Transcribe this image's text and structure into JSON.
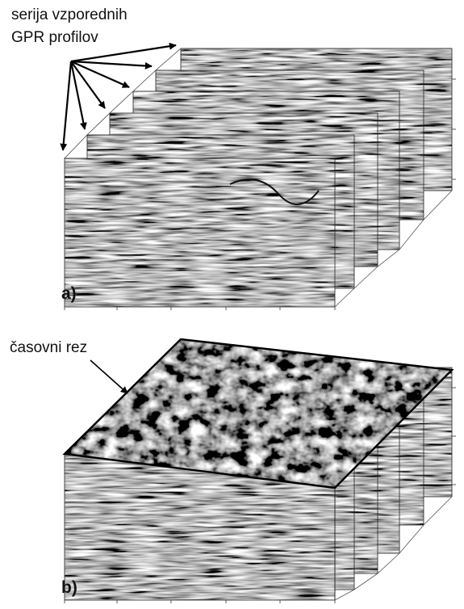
{
  "panel_a": {
    "annotation_line1": "serija vzporednih",
    "annotation_line2": "GPR profilov",
    "panel_label": "a)"
  },
  "panel_b": {
    "annotation": "časovni rez",
    "panel_label": "b)"
  },
  "colors": {
    "background": "#ffffff",
    "ink": "#000000",
    "radargram_light": "#e6e6e6",
    "radargram_dark": "#202020"
  }
}
